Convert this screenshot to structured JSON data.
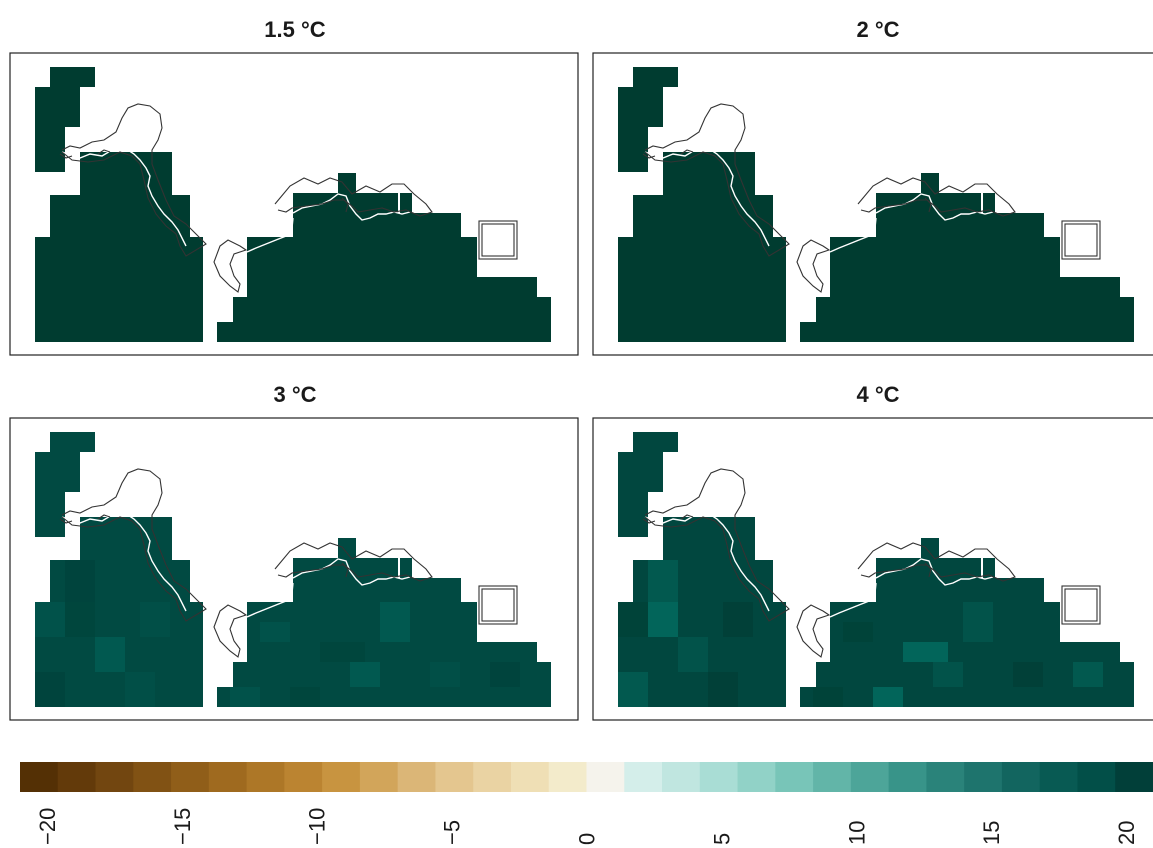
{
  "panels": [
    {
      "id": "p15",
      "title": "1.5 °C",
      "shade_variation": 0.0
    },
    {
      "id": "p2",
      "title": "2 °C",
      "shade_variation": 0.0
    },
    {
      "id": "p3",
      "title": "3 °C",
      "shade_variation": 0.45
    },
    {
      "id": "p4",
      "title": "4 °C",
      "shade_variation": 0.8
    }
  ],
  "colorbar": {
    "min": -21,
    "max": 21,
    "ticks": [
      "−20",
      "−15",
      "−10",
      "−5",
      "0",
      "5",
      "10",
      "15",
      "20"
    ],
    "tick_values": [
      -20,
      -15,
      -10,
      -5,
      0,
      5,
      10,
      15,
      20
    ],
    "colors": [
      "#543005",
      "#633a0a",
      "#724610",
      "#815214",
      "#905e19",
      "#9f6a1f",
      "#ad7727",
      "#bb8431",
      "#c89440",
      "#d2a55a",
      "#dbb677",
      "#e4c68f",
      "#ead3a3",
      "#efdfb5",
      "#f3ebcb",
      "#f5f3ec",
      "#d4eeea",
      "#c0e6e0",
      "#a9ddd5",
      "#91d2c7",
      "#78c5b8",
      "#62b5a8",
      "#4da599",
      "#389489",
      "#2a837a",
      "#1e746d",
      "#12655f",
      "#085a53",
      "#024f48",
      "#013f39"
    ]
  },
  "map_colors": {
    "dark": "#003c30",
    "mid": "#024f48",
    "land_outline": "#ffffff",
    "boundary": "#333333"
  }
}
